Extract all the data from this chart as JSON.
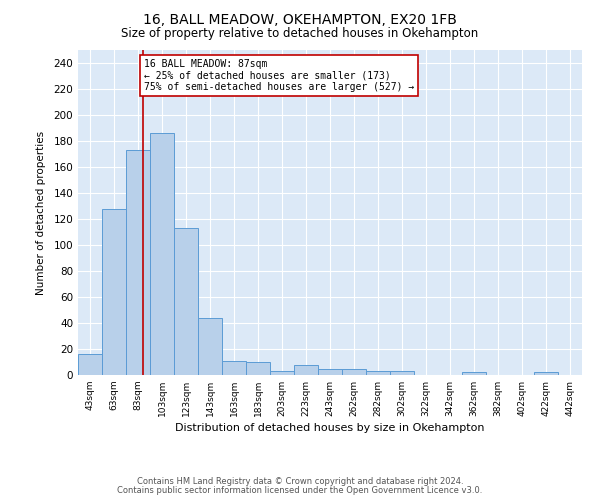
{
  "title1": "16, BALL MEADOW, OKEHAMPTON, EX20 1FB",
  "title2": "Size of property relative to detached houses in Okehampton",
  "xlabel": "Distribution of detached houses by size in Okehampton",
  "ylabel": "Number of detached properties",
  "bar_labels": [
    "43sqm",
    "63sqm",
    "83sqm",
    "103sqm",
    "123sqm",
    "143sqm",
    "163sqm",
    "183sqm",
    "203sqm",
    "223sqm",
    "243sqm",
    "262sqm",
    "282sqm",
    "302sqm",
    "322sqm",
    "342sqm",
    "362sqm",
    "382sqm",
    "402sqm",
    "422sqm",
    "442sqm"
  ],
  "bar_values": [
    16,
    128,
    173,
    186,
    113,
    44,
    11,
    10,
    3,
    8,
    5,
    5,
    3,
    3,
    0,
    0,
    2,
    0,
    0,
    2,
    0
  ],
  "bar_color": "#b8d0ea",
  "bar_edgecolor": "#5b9bd5",
  "vline_color": "#c00000",
  "annotation_text": "16 BALL MEADOW: 87sqm\n← 25% of detached houses are smaller (173)\n75% of semi-detached houses are larger (527) →",
  "annotation_box_edgecolor": "#c00000",
  "annotation_box_facecolor": "#ffffff",
  "ylim": [
    0,
    250
  ],
  "yticks": [
    0,
    20,
    40,
    60,
    80,
    100,
    120,
    140,
    160,
    180,
    200,
    220,
    240
  ],
  "footnote1": "Contains HM Land Registry data © Crown copyright and database right 2024.",
  "footnote2": "Contains public sector information licensed under the Open Government Licence v3.0.",
  "bg_color": "#dce9f7",
  "bin_width": 20,
  "property_sqm": 87,
  "n_bars": 21
}
